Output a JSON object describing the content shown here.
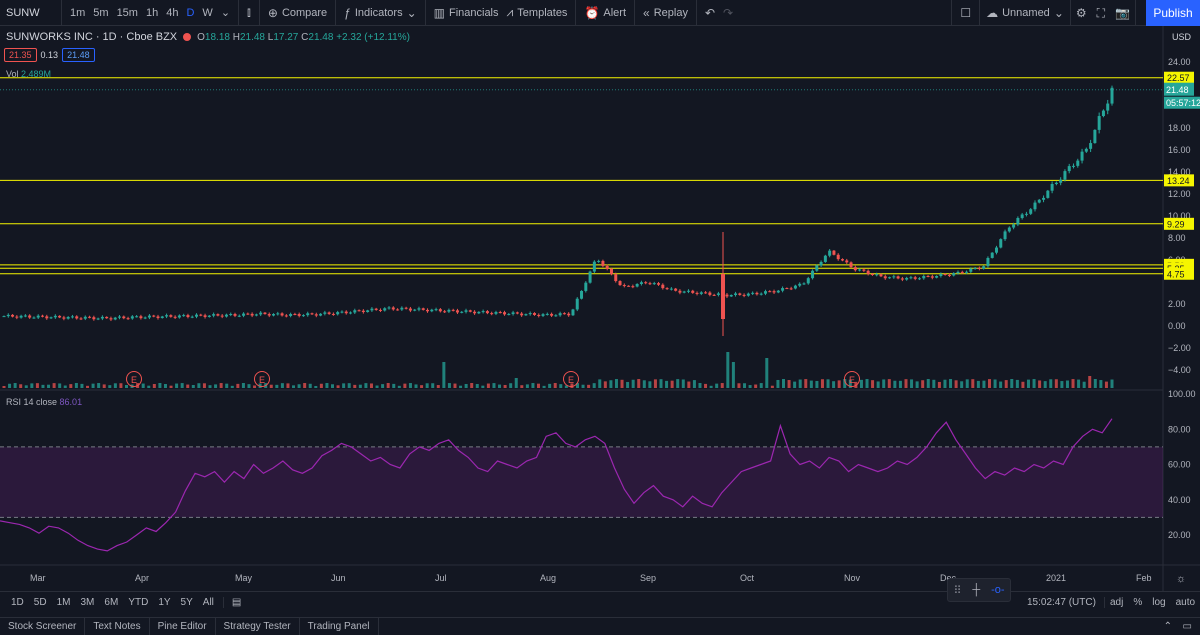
{
  "toolbar": {
    "symbol": "SUNW",
    "intervals": [
      "1m",
      "5m",
      "15m",
      "1h",
      "4h",
      "D",
      "W"
    ],
    "active_interval": "D",
    "compare": "Compare",
    "indicators": "Indicators",
    "financials": "Financials",
    "templates": "Templates",
    "alert": "Alert",
    "replay": "Replay",
    "layout_name": "Unnamed",
    "publish": "Publish"
  },
  "legend": {
    "name": "SUNWORKS INC · 1D · Cboe BZX",
    "o_label": "O",
    "o": "18.18",
    "h_label": "H",
    "h": "21.48",
    "l_label": "L",
    "l": "17.27",
    "c_label": "C",
    "c": "21.48",
    "change": "+2.32 (+12.11%)",
    "bid": "21.35",
    "spread": "0.13",
    "ask": "21.48",
    "vol_label": "Vol",
    "vol": "2.489M",
    "rsi_label": "RSI 14 close",
    "rsi": "86.01"
  },
  "price_axis": {
    "currency": "USD",
    "ticks": [
      "24.00",
      "18.00",
      "16.00",
      "14.00",
      "12.00",
      "10.00",
      "8.00",
      "6.00",
      "2.00",
      "0.00",
      "−2.00",
      "−4.00"
    ],
    "current_price": "21.48",
    "countdown": "05:57:12",
    "level_labels": [
      "22.57",
      "13.24",
      "9.29",
      "5.56",
      "5.25",
      "4.75"
    ]
  },
  "rsi_axis": {
    "ticks": [
      "100.00",
      "80.00",
      "60.00",
      "40.00",
      "20.00"
    ]
  },
  "time_axis": {
    "labels": [
      "Mar",
      "Apr",
      "May",
      "Jun",
      "Jul",
      "Aug",
      "Sep",
      "Oct",
      "Nov",
      "Dec",
      "2021",
      "Feb"
    ]
  },
  "earnings_marker": "E",
  "range_bar": {
    "ranges": [
      "1D",
      "5D",
      "1M",
      "3M",
      "6M",
      "YTD",
      "1Y",
      "5Y",
      "All"
    ],
    "clock": "15:02:47 (UTC)",
    "options": [
      "adj",
      "%",
      "log",
      "auto"
    ]
  },
  "panels": [
    "Stock Screener",
    "Text Notes",
    "Pine Editor",
    "Strategy Tester",
    "Trading Panel"
  ],
  "colors": {
    "up": "#26a69a",
    "down": "#ef5350",
    "level": "#f5f500",
    "rsi": "#9c27b0",
    "accent": "#2962ff"
  },
  "chart_data": {
    "type": "candlestick",
    "series": [
      {
        "name": "SUNW",
        "values": [
          0.9,
          0.85,
          0.8,
          0.75,
          0.7,
          0.8,
          0.85,
          0.9,
          0.95,
          1.0,
          1.1,
          1.0,
          1.05,
          1.2,
          1.4,
          1.6,
          1.5,
          1.4,
          1.3,
          1.2,
          1.1,
          1.0,
          1.1,
          6.2,
          3.5,
          4.0,
          3.2,
          3.0,
          2.8,
          2.9,
          3.2,
          3.8,
          6.8,
          5.2,
          4.5,
          4.3,
          4.5,
          4.8,
          5.4,
          9.0,
          11.0,
          13.5,
          16.0,
          21.48
        ]
      }
    ],
    "hlines": [
      22.57,
      13.24,
      9.29,
      5.56,
      5.25,
      4.75
    ],
    "last_price": 21.48,
    "y_range": [
      -4.0,
      24.0
    ]
  }
}
